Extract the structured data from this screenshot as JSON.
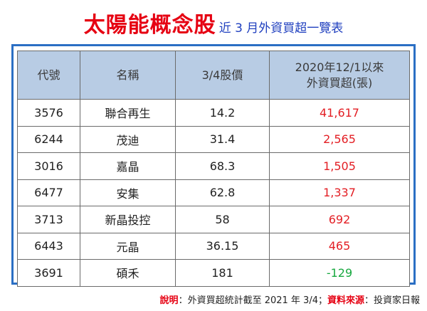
{
  "title": {
    "main": "太陽能概念股",
    "sub": "近 3 月外資買超一覽表"
  },
  "colors": {
    "title_red": "#e60012",
    "subtitle_blue": "#1f3fbf",
    "frame_blue": "#2b6fc4",
    "header_bg": "#b8cce4",
    "positive_red": "#e31e24",
    "negative_green": "#17a83f"
  },
  "table": {
    "headers": [
      "代號",
      "名稱",
      "3/4股價",
      "2020年12/1以來",
      "外資買超(張)"
    ],
    "rows": [
      {
        "code": "3576",
        "name": "聯合再生",
        "price": "14.2",
        "value": "41,617"
      },
      {
        "code": "6244",
        "name": "茂迪",
        "price": "31.4",
        "value": "2,565"
      },
      {
        "code": "3016",
        "name": "嘉晶",
        "price": "68.3",
        "value": "1,505"
      },
      {
        "code": "6477",
        "name": "安集",
        "price": "62.8",
        "value": "1,337"
      },
      {
        "code": "3713",
        "name": "新晶投控",
        "price": "58",
        "value": "692"
      },
      {
        "code": "6443",
        "name": "元晶",
        "price": "36.15",
        "value": "465"
      },
      {
        "code": "3691",
        "name": "碩禾",
        "price": "181",
        "value": "-129"
      }
    ]
  },
  "footnote": {
    "note_label": "說明",
    "note_text": "：外資買超統計截至 2021 年 3/4；",
    "source_label": "資料來源",
    "source_text": "：投資家日報"
  }
}
